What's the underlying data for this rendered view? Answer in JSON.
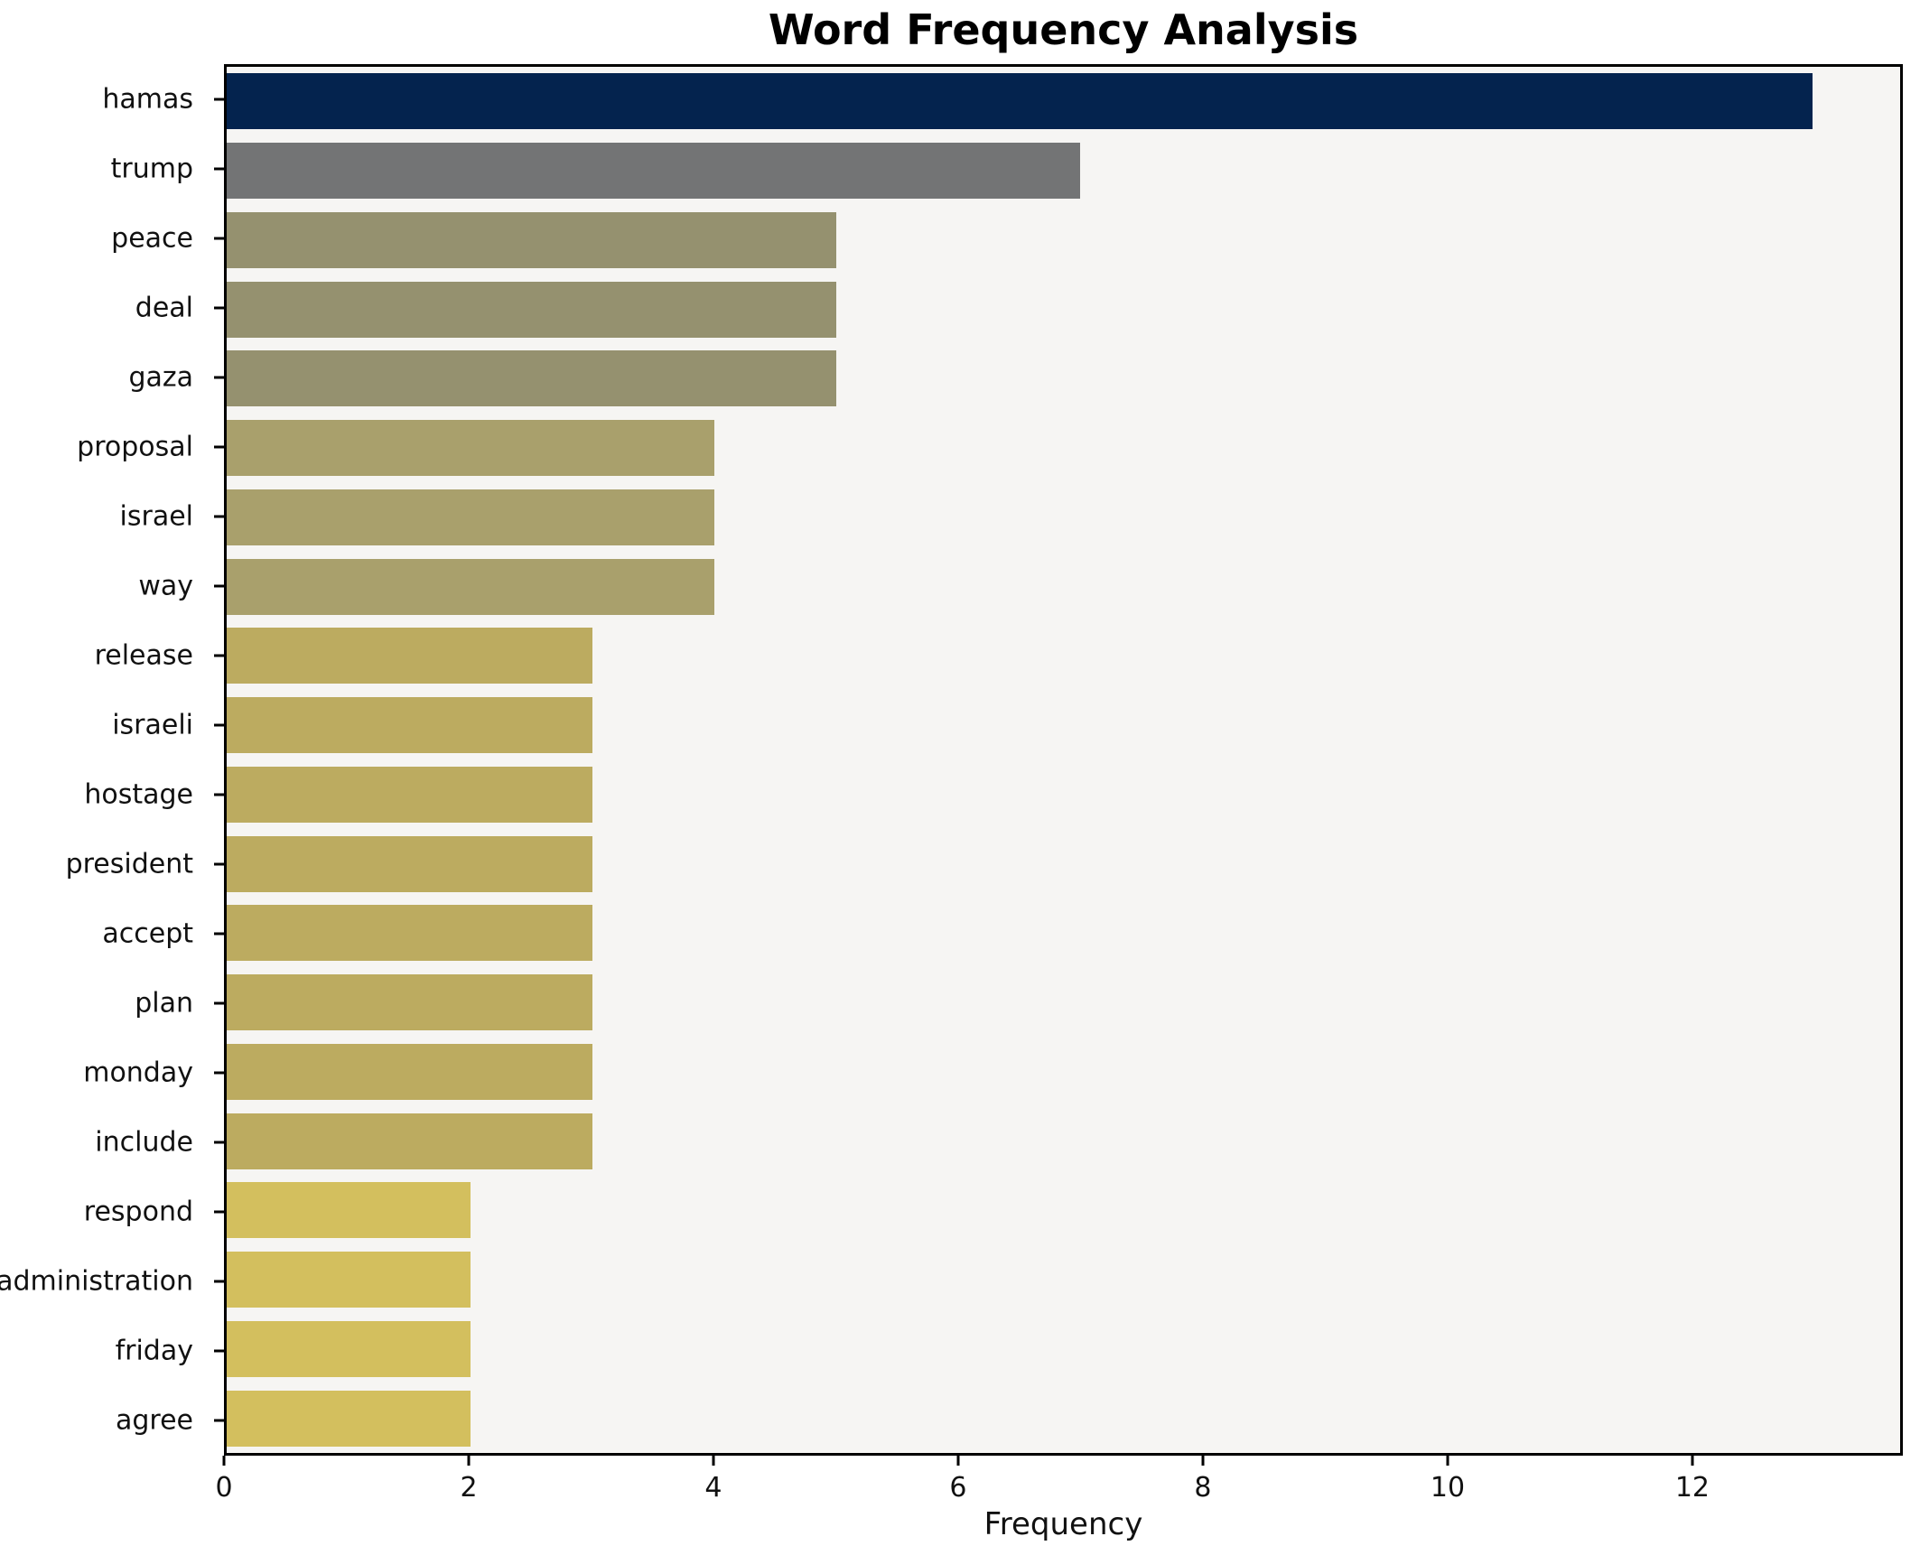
{
  "chart_data": {
    "type": "bar",
    "orientation": "horizontal",
    "title": "Word Frequency Analysis",
    "xlabel": "Frequency",
    "ylabel": "",
    "categories": [
      "hamas",
      "trump",
      "peace",
      "deal",
      "gaza",
      "proposal",
      "israel",
      "way",
      "release",
      "israeli",
      "hostage",
      "president",
      "accept",
      "plan",
      "monday",
      "include",
      "respond",
      "administration",
      "friday",
      "agree"
    ],
    "values": [
      13,
      7,
      5,
      5,
      5,
      4,
      4,
      4,
      3,
      3,
      3,
      3,
      3,
      3,
      3,
      3,
      2,
      2,
      2,
      2
    ],
    "bar_colors": [
      "#04234e",
      "#737475",
      "#95916f",
      "#95916f",
      "#95916f",
      "#a9a06c",
      "#a9a06c",
      "#a9a06c",
      "#bcab60",
      "#bcab60",
      "#bcab60",
      "#bcab60",
      "#bcab60",
      "#bcab60",
      "#bcab60",
      "#bcab60",
      "#d3bf5e",
      "#d3bf5e",
      "#d3bf5e",
      "#d3bf5e"
    ],
    "xlim": [
      0,
      13.72
    ],
    "xticks": [
      0,
      2,
      4,
      6,
      8,
      10,
      12
    ],
    "grid": false,
    "legend": null,
    "plot_bg": "#f6f5f3",
    "figure_bg": "#ffffff",
    "spine_color": "#000000",
    "text_color": "#111111"
  }
}
